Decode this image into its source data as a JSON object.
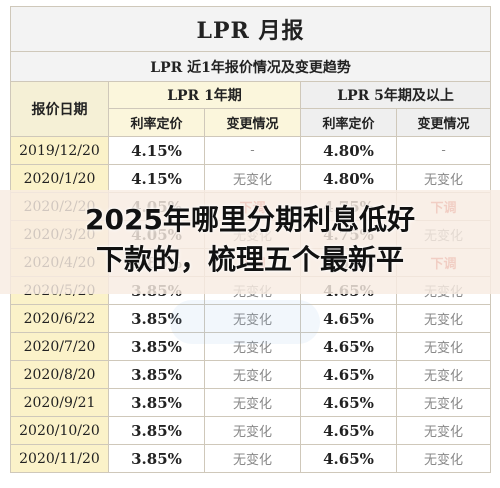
{
  "table": {
    "title": "LPR 月报",
    "subtitle": "LPR 近1年报价情况及变更趋势",
    "date_header": "报价日期",
    "group_1y": "LPR 1年期",
    "group_5y": "LPR 5年期及以上",
    "rate_header": "利率定价",
    "change_header": "变更情况",
    "rows": [
      {
        "date": "2019/12/20",
        "rate1": "4.15%",
        "chg1": "-",
        "rate5": "4.80%",
        "chg5": "-"
      },
      {
        "date": "2020/1/20",
        "rate1": "4.15%",
        "chg1": "无变化",
        "rate5": "4.80%",
        "chg5": "无变化"
      },
      {
        "date": "2020/2/20",
        "rate1": "4.05%",
        "chg1": "下调",
        "rate5": "4.75%",
        "chg5": "下调"
      },
      {
        "date": "2020/3/20",
        "rate1": "4.05%",
        "chg1": "无变化",
        "rate5": "4.75%",
        "chg5": "无变化"
      },
      {
        "date": "2020/4/20",
        "rate1": "3.85%",
        "chg1": "下调",
        "rate5": "4.65%",
        "chg5": "下调"
      },
      {
        "date": "2020/5/20",
        "rate1": "3.85%",
        "chg1": "无变化",
        "rate5": "4.65%",
        "chg5": "无变化"
      },
      {
        "date": "2020/6/22",
        "rate1": "3.85%",
        "chg1": "无变化",
        "rate5": "4.65%",
        "chg5": "无变化"
      },
      {
        "date": "2020/7/20",
        "rate1": "3.85%",
        "chg1": "无变化",
        "rate5": "4.65%",
        "chg5": "无变化"
      },
      {
        "date": "2020/8/20",
        "rate1": "3.85%",
        "chg1": "无变化",
        "rate5": "4.65%",
        "chg5": "无变化"
      },
      {
        "date": "2020/9/21",
        "rate1": "3.85%",
        "chg1": "无变化",
        "rate5": "4.65%",
        "chg5": "无变化"
      },
      {
        "date": "2020/10/20",
        "rate1": "3.85%",
        "chg1": "无变化",
        "rate5": "4.65%",
        "chg5": "无变化"
      },
      {
        "date": "2020/11/20",
        "rate1": "3.85%",
        "chg1": "无变化",
        "rate5": "4.65%",
        "chg5": "无变化"
      }
    ]
  },
  "overlay": {
    "line1": "2025年哪里分期利息低好",
    "line2": "下款的，梳理五个最新平"
  },
  "colors": {
    "date_bg": "#fbf2c9",
    "header_1y_bg": "#fbf6dc",
    "header_5y_bg": "#efefef",
    "down_text": "#d24b3e",
    "unchanged_text": "#888888"
  }
}
